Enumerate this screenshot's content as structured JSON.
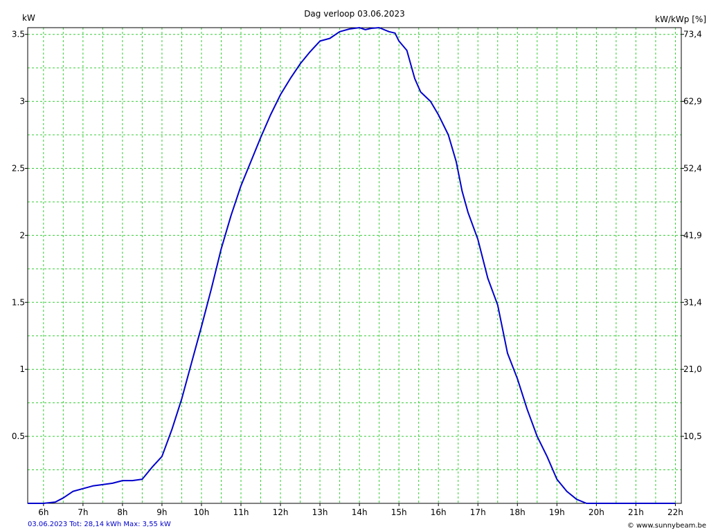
{
  "chart_data": {
    "type": "line",
    "title": "Dag  verloop 03.06.2023",
    "ylabel_left": "kW",
    "ylabel_right": "kW/kWp [%]",
    "xlim": [
      5.6,
      22.15
    ],
    "ylim": [
      0,
      3.55
    ],
    "x_ticks": [
      6,
      7,
      8,
      9,
      10,
      11,
      12,
      13,
      14,
      15,
      16,
      17,
      18,
      19,
      20,
      21,
      22
    ],
    "x_tick_labels": [
      "6h",
      "7h",
      "8h",
      "9h",
      "10h",
      "11h",
      "12h",
      "13h",
      "14h",
      "15h",
      "16h",
      "17h",
      "18h",
      "19h",
      "20h",
      "21h",
      "22h"
    ],
    "y_ticks": [
      0.5,
      1,
      1.5,
      2,
      2.5,
      3,
      3.5
    ],
    "y_tick_labels": [
      "0.5",
      "1",
      "1.5",
      "2",
      "2.5",
      "3",
      "3.5"
    ],
    "y_right_ticks": [
      0.5,
      1,
      1.5,
      2,
      2.5,
      3,
      3.5
    ],
    "y_right_tick_labels": [
      "10,5",
      "21,0",
      "31,4",
      "41,9",
      "52,4",
      "62,9",
      "73,4"
    ],
    "grid": true,
    "series": [
      {
        "color": "#0000cc",
        "x": [
          5.6,
          6.0,
          6.3,
          6.5,
          6.75,
          7.0,
          7.25,
          7.5,
          7.75,
          8.0,
          8.25,
          8.5,
          8.75,
          9.0,
          9.25,
          9.5,
          9.75,
          10.0,
          10.25,
          10.5,
          10.75,
          11.0,
          11.25,
          11.5,
          11.75,
          12.0,
          12.25,
          12.5,
          12.75,
          13.0,
          13.25,
          13.5,
          13.75,
          14.0,
          14.15,
          14.3,
          14.5,
          14.75,
          14.9,
          15.0,
          15.2,
          15.4,
          15.55,
          15.8,
          16.0,
          16.25,
          16.45,
          16.6,
          16.75,
          17.0,
          17.25,
          17.5,
          17.75,
          18.0,
          18.25,
          18.5,
          18.75,
          19.0,
          19.25,
          19.5,
          19.75,
          20.0,
          20.25,
          20.5,
          20.75,
          21.0,
          21.25,
          21.5,
          21.75,
          22.0
        ],
        "y": [
          0.0,
          0.0,
          0.01,
          0.04,
          0.09,
          0.11,
          0.13,
          0.14,
          0.15,
          0.17,
          0.17,
          0.18,
          0.27,
          0.35,
          0.55,
          0.78,
          1.05,
          1.32,
          1.6,
          1.9,
          2.15,
          2.37,
          2.55,
          2.73,
          2.9,
          3.05,
          3.17,
          3.28,
          3.37,
          3.45,
          3.47,
          3.52,
          3.54,
          3.55,
          3.535,
          3.545,
          3.55,
          3.52,
          3.51,
          3.45,
          3.38,
          3.17,
          3.07,
          3.0,
          2.9,
          2.75,
          2.55,
          2.33,
          2.17,
          1.97,
          1.68,
          1.48,
          1.12,
          0.93,
          0.7,
          0.5,
          0.35,
          0.18,
          0.09,
          0.03,
          0.0,
          0.0,
          0.0,
          0.0,
          0.0,
          0.0,
          0.0,
          0.0,
          0.0,
          0.0
        ]
      }
    ]
  },
  "footer": {
    "left": "03.06.2023 Tot: 28,14 kWh Max: 3,55 kW",
    "right": "© www.sunnybeam.be"
  }
}
